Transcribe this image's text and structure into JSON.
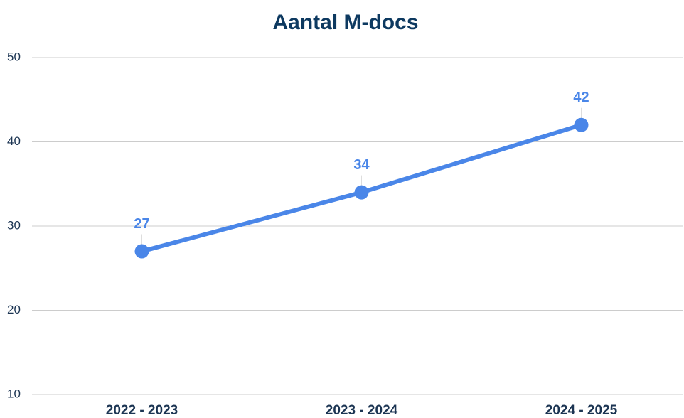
{
  "chart_data": {
    "type": "line",
    "title": "Aantal M-docs",
    "categories": [
      "2022 - 2023",
      "2023 - 2024",
      "2024 - 2025"
    ],
    "values": [
      27,
      34,
      42
    ],
    "color": "#4a86e8",
    "ylim": [
      10,
      50
    ],
    "yticks": [
      10,
      20,
      30,
      40,
      50
    ],
    "grid": true
  }
}
